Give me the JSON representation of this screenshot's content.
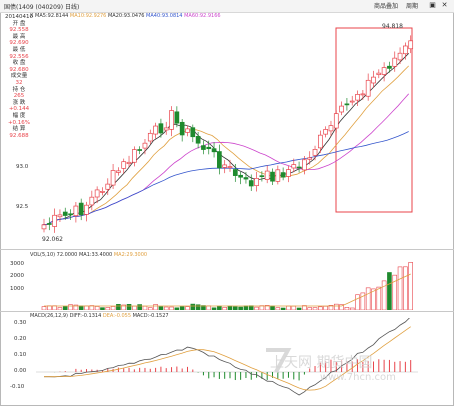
{
  "window": {
    "title": "国债(1409 (040209) 日线)",
    "menu_right": "商品叠加",
    "menu_help": "周期"
  },
  "info_panel": {
    "date": "20140410",
    "items": [
      {
        "label": "开 盘",
        "value": "92.558"
      },
      {
        "label": "最 高",
        "value": "92.690"
      },
      {
        "label": "最 低",
        "value": "92.556"
      },
      {
        "label": "收 盘",
        "value": "92.680"
      },
      {
        "label": "成交量",
        "value": "32"
      },
      {
        "label": "持 仓",
        "value": "265"
      },
      {
        "label": "涨 跌",
        "value": "+0.144"
      },
      {
        "label": "幅 度",
        "value": "+0.16%"
      },
      {
        "label": "结 算",
        "value": "92.688"
      }
    ]
  },
  "main_chart": {
    "ma_header": {
      "close_label": "MA5:92.8144",
      "ma10": "MA10:92.9276",
      "ma20": "MA20:93.0476",
      "ma40": "MA40:93.0814",
      "ma60": "MA60:92.9166"
    },
    "y_ticks": [
      "93.0",
      "92.5"
    ],
    "high_label": "94.818",
    "low_label": "92.062"
  },
  "volume_chart": {
    "header": {
      "vol": "VOL(5,10) 72.0000",
      "ma1": "MA1:33.4000",
      "ma2": "MA2:29.3000"
    },
    "y_ticks": [
      "3000",
      "2000",
      "1000"
    ]
  },
  "macd_chart": {
    "header": {
      "macd": "MACD(26,12,9)",
      "diff": "DIFF:-0.1314",
      "dea": "DEA:-0.055",
      "macd_val": "MACD:-0.1527"
    },
    "y_ticks": [
      "0.30",
      "0.20",
      "0.10",
      "0.00",
      "-0.10"
    ]
  },
  "watermark": {
    "brand": "上天网 期货中国",
    "url": "www.7hcn.com"
  },
  "colors": {
    "up": "#e8434a",
    "down": "#1f8a2e",
    "ma5": "#333333",
    "ma10": "#e0a040",
    "ma20": "#cc44cc",
    "ma40": "#3355cc",
    "highlight_box": "#e8434a"
  }
}
